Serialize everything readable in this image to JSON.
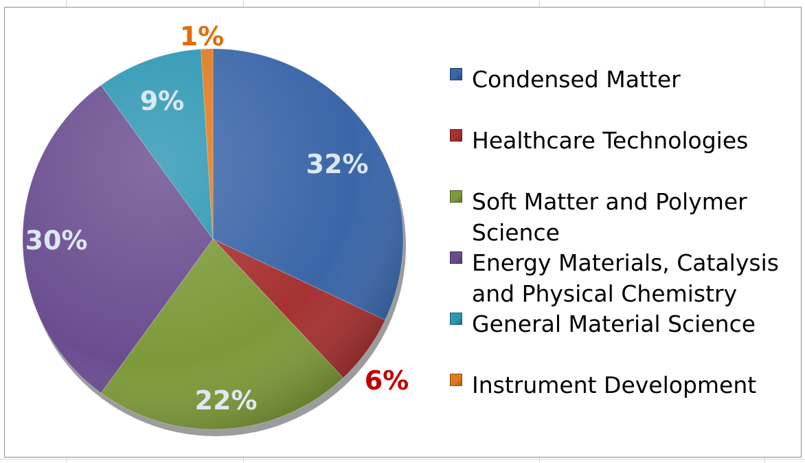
{
  "chart_data": {
    "type": "pie",
    "title": "",
    "slices": [
      {
        "label": "Condensed Matter",
        "value": 32,
        "display": "32%",
        "color": "#3a66a8",
        "label_color": "#dce9f5"
      },
      {
        "label": "Healthcare Technologies",
        "value": 6,
        "display": "6%",
        "color": "#a63232",
        "label_color": "#c00000"
      },
      {
        "label": "Soft Matter and Polymer Science",
        "value": 22,
        "display": "22%",
        "color": "#7c9a3a",
        "label_color": "#dce9f5"
      },
      {
        "label": "Energy Materials, Catalysis and Physical Chemistry",
        "value": 30,
        "display": "30%",
        "color": "#6a4d8f",
        "label_color": "#dce9f5"
      },
      {
        "label": "General Material Science",
        "value": 9,
        "display": "9%",
        "color": "#2d97b3",
        "label_color": "#dce9f5"
      },
      {
        "label": "Instrument Development",
        "value": 1,
        "display": "1%",
        "color": "#e07b1c",
        "label_color": "#e36c09"
      }
    ],
    "legend_position": "right"
  }
}
